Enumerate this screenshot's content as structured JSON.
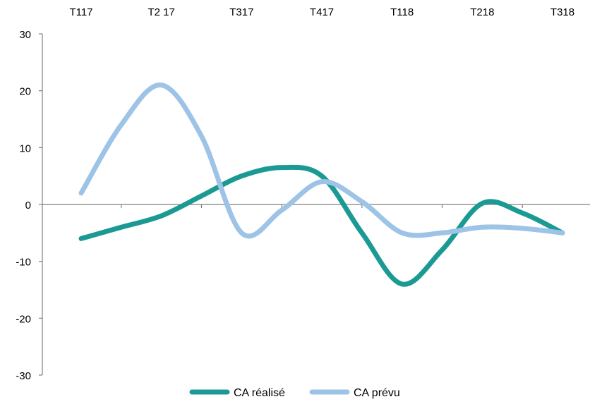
{
  "chart_data": {
    "type": "line",
    "smooth": true,
    "categories": [
      "T117",
      "T2 17",
      "T317",
      "T417",
      "T118",
      "T218",
      "T318"
    ],
    "x_axis_position": "top",
    "y_ticks": [
      30,
      20,
      10,
      0,
      -10,
      -20,
      -30
    ],
    "ylim": [
      -30,
      30
    ],
    "grid": false,
    "legend_position": "bottom",
    "series": [
      {
        "name": "CA réalisé",
        "color": "#1a9a92",
        "x": [
          0,
          0.5,
          1,
          1.5,
          2,
          2.5,
          3,
          3.5,
          4,
          4.5,
          5,
          5.5,
          6
        ],
        "values": [
          -6,
          -4,
          -2,
          1.5,
          5,
          6.5,
          5,
          -5,
          -14,
          -8,
          0.2,
          -1.5,
          -5
        ]
      },
      {
        "name": "CA prévu",
        "color": "#9dc3e6",
        "x": [
          0,
          0.5,
          1,
          1.5,
          2,
          2.5,
          3,
          3.5,
          4,
          4.5,
          5,
          5.5,
          6
        ],
        "values": [
          2,
          14,
          21,
          12,
          -5,
          -1,
          4,
          0.5,
          -5,
          -5,
          -4,
          -4.2,
          -5
        ]
      }
    ]
  }
}
